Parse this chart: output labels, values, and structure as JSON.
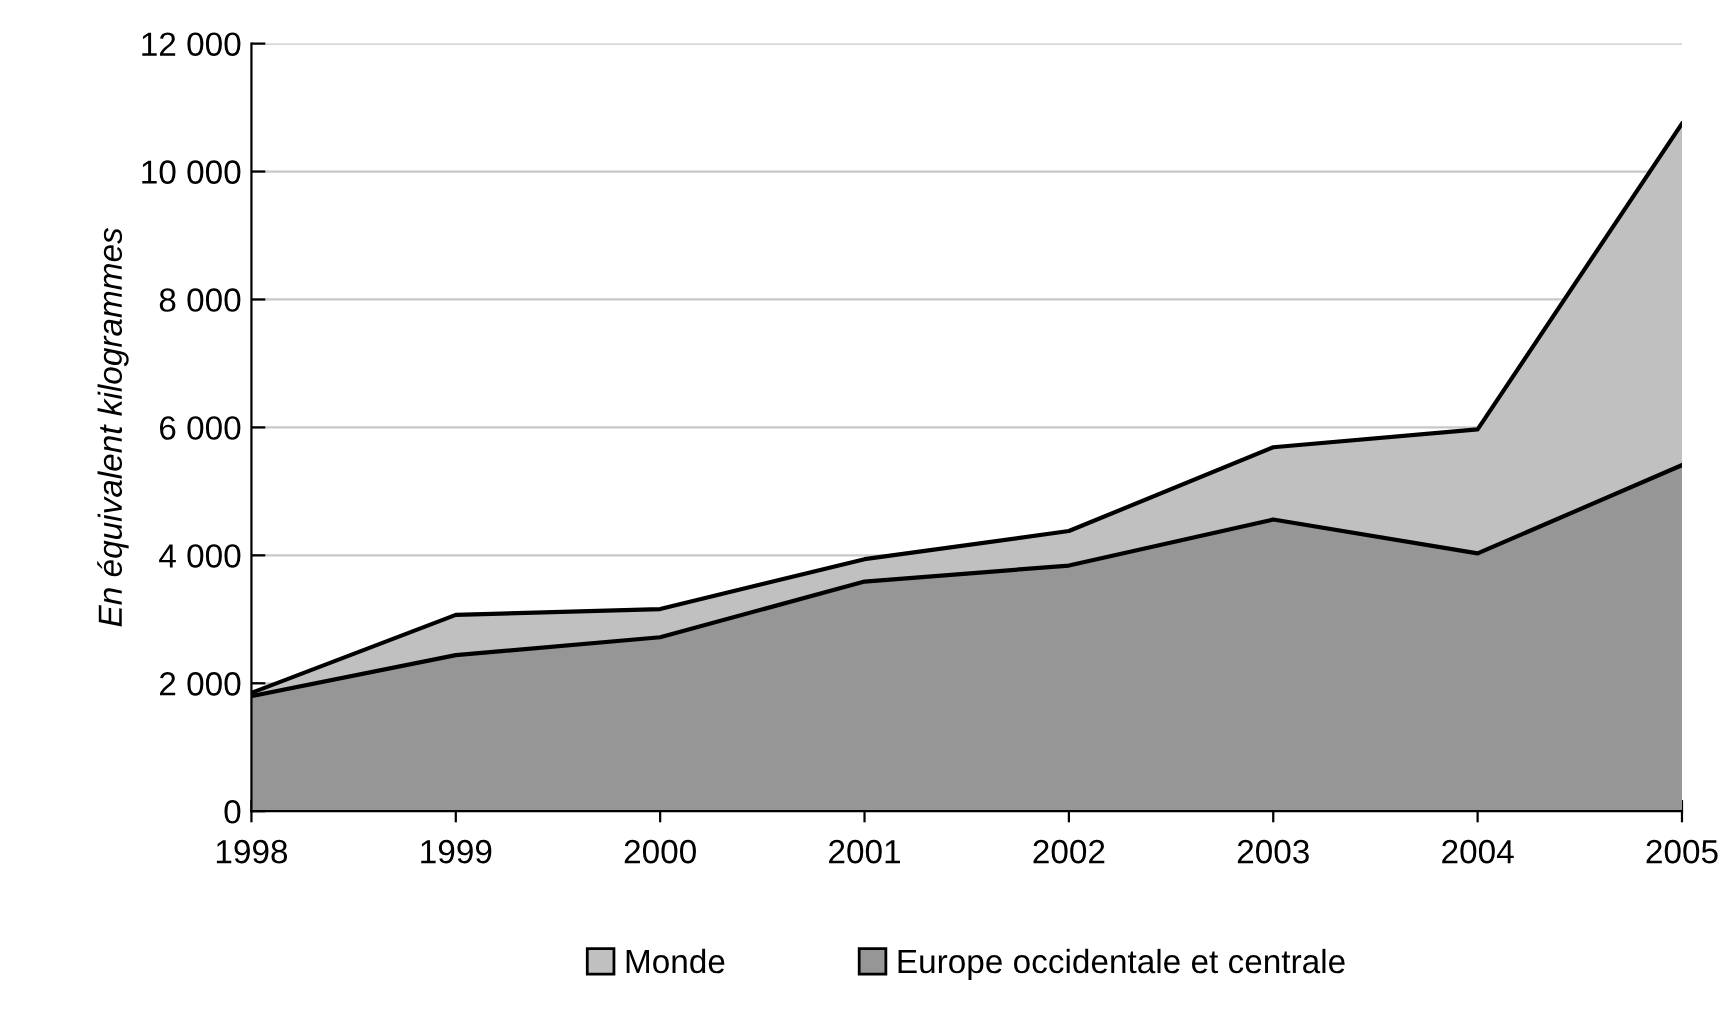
{
  "chart_data": {
    "type": "area",
    "ylabel": "En équivalent kilogrammes",
    "x": [
      1998,
      1999,
      2000,
      2001,
      2002,
      2003,
      2004,
      2005
    ],
    "series": [
      {
        "name": "Monde",
        "color": "#c0c0c0",
        "values": [
          1850,
          3070,
          3160,
          3940,
          4380,
          5690,
          5970,
          10750
        ]
      },
      {
        "name": "Europe occidentale et centrale",
        "color": "#969696",
        "values": [
          1800,
          2440,
          2720,
          3590,
          3840,
          4560,
          4030,
          5410
        ]
      }
    ],
    "xlim": [
      1998,
      2005
    ],
    "xticks": [
      1998,
      1999,
      2000,
      2001,
      2002,
      2003,
      2004,
      2005
    ],
    "ylim": [
      0,
      12000
    ],
    "yticks": [
      0,
      {
        "value": 2000,
        "label": "2 000"
      },
      {
        "value": 4000,
        "label": "4 000"
      },
      {
        "value": 6000,
        "label": "6 000"
      },
      {
        "value": 8000,
        "label": "8 000"
      },
      {
        "value": 10000,
        "label": "10 000"
      },
      {
        "value": 12000,
        "label": "12 000"
      }
    ],
    "grid": "y",
    "legend": "bottom"
  }
}
